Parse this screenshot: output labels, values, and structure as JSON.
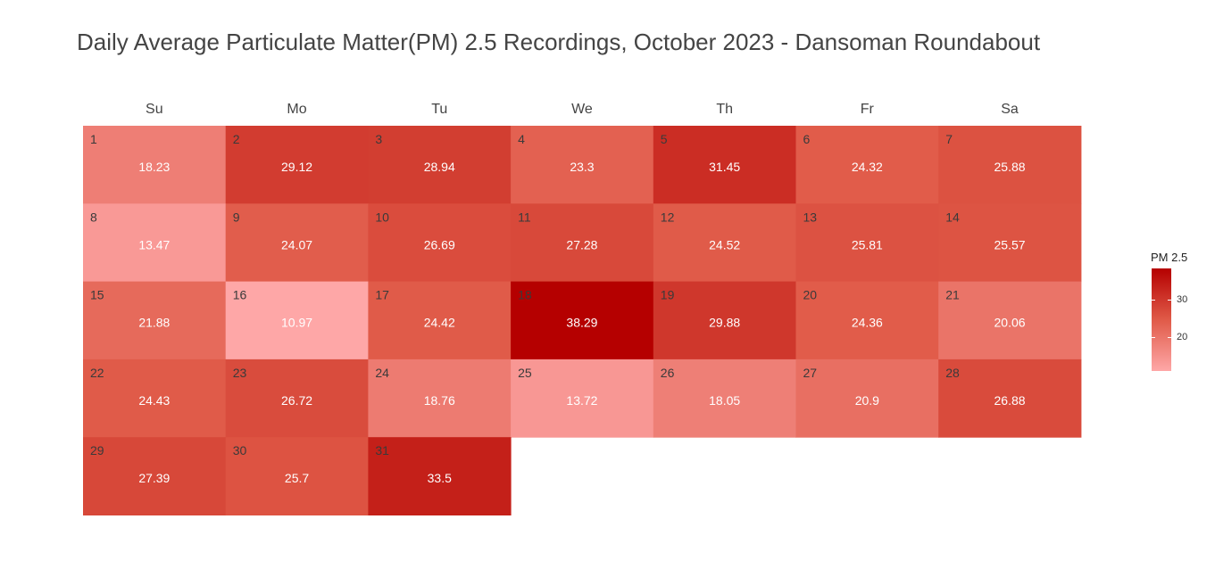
{
  "title": "Daily Average Particulate Matter(PM) 2.5 Recordings, October 2023 - Dansoman Roundabout",
  "colors": {
    "low": "#fea7a7",
    "mid": "#e05a48",
    "high": "#b50000",
    "title_text": "#444444",
    "day_number_text": "#3a3a3a",
    "value_text": "#ffffff"
  },
  "legend": {
    "title": "PM 2.5",
    "ticks": [
      {
        "label": "30",
        "value": 30
      },
      {
        "label": "20",
        "value": 20
      }
    ]
  },
  "chart_data": {
    "type": "heatmap",
    "title": "Daily Average Particulate Matter(PM) 2.5 Recordings, October 2023 - Dansoman Roundabout",
    "weekdays": [
      "Su",
      "Mo",
      "Tu",
      "We",
      "Th",
      "Fr",
      "Sa"
    ],
    "first_weekday_index": 0,
    "days": [
      {
        "day": 1,
        "value": 18.23
      },
      {
        "day": 2,
        "value": 29.12
      },
      {
        "day": 3,
        "value": 28.94
      },
      {
        "day": 4,
        "value": 23.3
      },
      {
        "day": 5,
        "value": 31.45
      },
      {
        "day": 6,
        "value": 24.32
      },
      {
        "day": 7,
        "value": 25.88
      },
      {
        "day": 8,
        "value": 13.47
      },
      {
        "day": 9,
        "value": 24.07
      },
      {
        "day": 10,
        "value": 26.69
      },
      {
        "day": 11,
        "value": 27.28
      },
      {
        "day": 12,
        "value": 24.52
      },
      {
        "day": 13,
        "value": 25.81
      },
      {
        "day": 14,
        "value": 25.57
      },
      {
        "day": 15,
        "value": 21.88
      },
      {
        "day": 16,
        "value": 10.97
      },
      {
        "day": 17,
        "value": 24.42
      },
      {
        "day": 18,
        "value": 38.29
      },
      {
        "day": 19,
        "value": 29.88
      },
      {
        "day": 20,
        "value": 24.36
      },
      {
        "day": 21,
        "value": 20.06
      },
      {
        "day": 22,
        "value": 24.43
      },
      {
        "day": 23,
        "value": 26.72
      },
      {
        "day": 24,
        "value": 18.76
      },
      {
        "day": 25,
        "value": 13.72
      },
      {
        "day": 26,
        "value": 18.05
      },
      {
        "day": 27,
        "value": 20.9
      },
      {
        "day": 28,
        "value": 26.88
      },
      {
        "day": 29,
        "value": 27.39
      },
      {
        "day": 30,
        "value": 25.7
      },
      {
        "day": 31,
        "value": 33.5
      }
    ],
    "legend_title": "PM 2.5",
    "legend_position": "right",
    "color_range": [
      10.97,
      38.29
    ]
  }
}
